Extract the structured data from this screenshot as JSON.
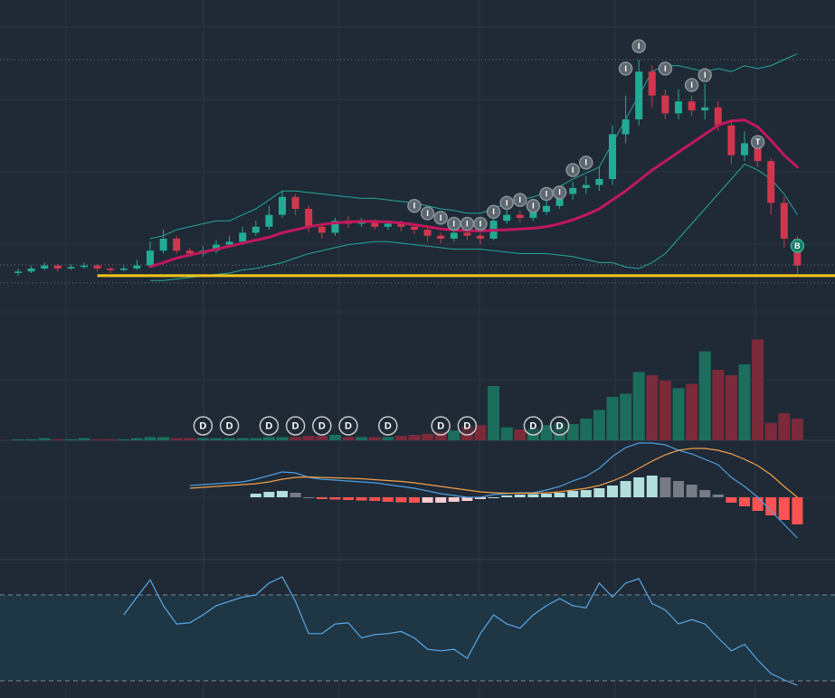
{
  "chart_data": [
    {
      "type": "candlestick",
      "open": [
        8.5,
        9,
        10,
        11,
        10,
        10.5,
        11,
        10,
        9.5,
        10,
        11,
        16,
        20,
        16,
        15,
        16,
        18,
        19,
        22,
        24,
        28,
        34,
        30,
        24,
        22,
        26,
        25,
        25.5,
        24,
        25,
        24,
        23,
        21,
        20,
        22,
        21,
        20,
        26,
        28,
        27,
        29,
        31,
        35,
        37,
        38,
        40,
        55,
        60,
        76,
        68,
        62,
        66,
        63,
        64,
        58,
        48,
        52,
        46,
        32,
        20
      ],
      "high": [
        10,
        11,
        12,
        11.5,
        11.5,
        12,
        11.5,
        10.5,
        11,
        13,
        19,
        23,
        21,
        17,
        17.5,
        19.5,
        21,
        24,
        26,
        31,
        36,
        35,
        31,
        25,
        27,
        27.5,
        27,
        26.5,
        26,
        26,
        25,
        24,
        22,
        23,
        22.5,
        22,
        28,
        30,
        29.5,
        31,
        33,
        37,
        39,
        41,
        44,
        58,
        68,
        80,
        78,
        70,
        70,
        68,
        72,
        66,
        60,
        56,
        54,
        47,
        34,
        21
      ],
      "low": [
        7.5,
        8.5,
        9.5,
        9,
        9.5,
        10,
        9,
        8.5,
        9,
        9.5,
        10.5,
        15,
        15,
        14,
        14,
        15,
        17,
        18,
        21,
        23,
        27,
        28,
        22,
        20,
        21,
        23.5,
        24,
        23,
        23,
        22.5,
        21.5,
        19,
        18.5,
        19,
        19.5,
        18,
        19.5,
        25,
        25.5,
        26,
        28,
        30,
        33,
        35,
        36,
        38,
        52,
        58,
        64,
        60,
        60,
        61,
        60,
        56,
        45,
        46,
        44,
        28,
        17,
        8
      ],
      "close": [
        9,
        10,
        11,
        10,
        10.5,
        11,
        10,
        9.5,
        10,
        11,
        16,
        20,
        16,
        15,
        16,
        18,
        19,
        22,
        24,
        28,
        34,
        30,
        24,
        22,
        26,
        25,
        25.5,
        24,
        25,
        24,
        23,
        21,
        20,
        22,
        21,
        20,
        26,
        28,
        27,
        29,
        31,
        35,
        37,
        38,
        40,
        55,
        60,
        76,
        68,
        62,
        66,
        63,
        64,
        58,
        48,
        52,
        46,
        32,
        20,
        11
      ],
      "up_color": "#22ab94",
      "down_color": "#d2364f",
      "ylim": [
        0,
        100
      ],
      "overlays": [
        {
          "color": "#26a69a",
          "width": 1,
          "values": [
            null,
            null,
            null,
            null,
            null,
            null,
            null,
            null,
            null,
            null,
            20,
            21,
            23,
            24,
            25,
            26,
            26,
            28,
            30,
            33,
            36,
            36,
            35.5,
            35,
            34.5,
            34,
            33.5,
            33.5,
            33,
            32.5,
            32,
            31,
            30,
            29.5,
            28.5,
            28.5,
            30,
            32,
            33,
            34,
            35.5,
            37.5,
            40,
            42,
            44,
            52,
            60,
            68,
            76,
            78,
            78,
            77,
            76,
            77,
            76,
            78,
            77,
            78,
            80,
            82
          ]
        },
        {
          "color": "#26a69a",
          "width": 1,
          "values": [
            null,
            null,
            null,
            null,
            null,
            null,
            null,
            null,
            null,
            null,
            6,
            6,
            6.5,
            7,
            7.5,
            8,
            8.5,
            9.5,
            10,
            11,
            12,
            13.5,
            15,
            16,
            17,
            18,
            18.5,
            19,
            19,
            18.5,
            18,
            17.5,
            17,
            16.5,
            16.5,
            16.5,
            16,
            15.5,
            15,
            15,
            15,
            14.5,
            14,
            13,
            12,
            12,
            10.5,
            10,
            12,
            15,
            20,
            25,
            30,
            35,
            40,
            45,
            43,
            40,
            35,
            28
          ]
        },
        {
          "color": "#c2185b",
          "width": 3,
          "values": [
            null,
            null,
            null,
            null,
            null,
            null,
            null,
            null,
            null,
            null,
            10.6,
            12,
            13.5,
            14.5,
            15.5,
            16.5,
            17.5,
            18.5,
            19.5,
            20.5,
            22,
            23,
            24,
            24.8,
            25.3,
            25.6,
            25.8,
            25.8,
            25.6,
            25.3,
            24.7,
            24,
            23.3,
            22.9,
            22.7,
            22.6,
            22.8,
            23,
            23.2,
            23.5,
            24,
            25,
            26.3,
            28,
            30,
            33,
            36,
            39.5,
            43,
            46,
            49,
            52,
            55,
            58,
            59.5,
            59.8,
            57.5,
            53,
            48,
            44
          ]
        }
      ],
      "hlines": [
        80,
        11.2,
        5.2
      ],
      "support": {
        "value": 7.6,
        "color": "#f5c518",
        "from_index": 6
      },
      "annotations": [
        {
          "text": "I",
          "index": 30,
          "value": 31
        },
        {
          "text": "I",
          "index": 31,
          "value": 28.5
        },
        {
          "text": "I",
          "index": 32,
          "value": 27
        },
        {
          "text": "I",
          "index": 33,
          "value": 25
        },
        {
          "text": "I",
          "index": 34,
          "value": 25
        },
        {
          "text": "I",
          "index": 35,
          "value": 25
        },
        {
          "text": "I",
          "index": 36,
          "value": 29
        },
        {
          "text": "I",
          "index": 37,
          "value": 32
        },
        {
          "text": "I",
          "index": 38,
          "value": 33
        },
        {
          "text": "I",
          "index": 39,
          "value": 31
        },
        {
          "text": "I",
          "index": 40,
          "value": 35
        },
        {
          "text": "I",
          "index": 41,
          "value": 35.5
        },
        {
          "text": "I",
          "index": 42,
          "value": 43
        },
        {
          "text": "I",
          "index": 43,
          "value": 45.5
        },
        {
          "text": "I",
          "index": 46,
          "value": 77
        },
        {
          "text": "I",
          "index": 47,
          "value": 84.5
        },
        {
          "text": "I",
          "index": 49,
          "value": 77
        },
        {
          "text": "I",
          "index": 51,
          "value": 71.5
        },
        {
          "text": "I",
          "index": 52,
          "value": 74.8
        },
        {
          "text": "T",
          "index": 56,
          "value": 52.4
        },
        {
          "text": "B",
          "index": 59,
          "value": 17.6
        }
      ]
    },
    {
      "type": "bar",
      "values": [
        1,
        1,
        2,
        1,
        1,
        2,
        1,
        1,
        1,
        2,
        3,
        3,
        2,
        2,
        2,
        2,
        2,
        2,
        2,
        3,
        3,
        3,
        4,
        4,
        5,
        3,
        3,
        3,
        3,
        4,
        5,
        6,
        8,
        9,
        13,
        14,
        50,
        12,
        10,
        11,
        14,
        16,
        15,
        20,
        28,
        40,
        43,
        63,
        60,
        55,
        48,
        52,
        82,
        65,
        60,
        70,
        93,
        16,
        25,
        20
      ],
      "up_color": "#1b6e5c",
      "down_color": "#7b2a3a",
      "ylim": [
        0,
        120
      ],
      "annotations": [
        {
          "text": "D",
          "index": 14
        },
        {
          "text": "D",
          "index": 16
        },
        {
          "text": "D",
          "index": 19
        },
        {
          "text": "D",
          "index": 21
        },
        {
          "text": "D",
          "index": 23
        },
        {
          "text": "D",
          "index": 25
        },
        {
          "text": "D",
          "index": 28
        },
        {
          "text": "D",
          "index": 32
        },
        {
          "text": "D",
          "index": 34
        },
        {
          "text": "D",
          "index": 39
        },
        {
          "text": "D",
          "index": 41
        }
      ]
    },
    {
      "type": "macd",
      "ylim": [
        -70,
        70
      ],
      "macd": {
        "color": "#4e9fe0",
        "values": [
          null,
          null,
          null,
          null,
          null,
          null,
          null,
          null,
          null,
          null,
          null,
          null,
          null,
          13,
          14,
          15,
          16,
          17,
          20,
          24,
          28,
          27,
          22,
          20,
          19,
          18,
          17,
          16,
          14,
          12,
          10,
          7,
          4,
          2,
          0,
          0,
          3,
          4,
          5,
          5,
          8,
          12,
          18,
          23,
          32,
          45,
          55,
          60,
          60,
          58,
          52,
          48,
          42,
          36,
          22,
          12,
          0,
          -15,
          -30,
          -45
        ]
      },
      "signal": {
        "color": "#f0a04b",
        "values": [
          null,
          null,
          null,
          null,
          null,
          null,
          null,
          null,
          null,
          null,
          null,
          null,
          null,
          10,
          11,
          12,
          13,
          14,
          15,
          17,
          20,
          22,
          22.5,
          22,
          21.5,
          21,
          20.5,
          19.5,
          18.5,
          17.5,
          16,
          14,
          12,
          10,
          8,
          6,
          5,
          4.5,
          4.5,
          4.5,
          5,
          6,
          8,
          10,
          13,
          18,
          24,
          32,
          40,
          47,
          52,
          54,
          54,
          52,
          48,
          42,
          35,
          25,
          12,
          0
        ]
      },
      "histogram": {
        "values": [
          null,
          null,
          null,
          null,
          null,
          null,
          null,
          null,
          null,
          null,
          null,
          null,
          null,
          null,
          null,
          null,
          null,
          null,
          4,
          6,
          7,
          5,
          0,
          -2,
          -2.5,
          -3,
          -3.5,
          -4,
          -5,
          -5.5,
          -6,
          -6,
          -6,
          -5,
          -4,
          -2,
          0,
          2,
          3,
          3.5,
          4,
          5,
          7,
          8,
          10,
          13,
          18,
          22,
          24,
          22,
          18,
          14,
          8,
          3,
          -6,
          -10,
          -15,
          -20,
          -25,
          -30
        ],
        "pos_up": "#b2dfdb",
        "pos_down": "#787b86",
        "neg_down": "#ff5252",
        "neg_up": "#ffcdd2"
      }
    },
    {
      "type": "line",
      "color": "#5aa9e6",
      "ylim": [
        22,
        86
      ],
      "levels": [
        70,
        30
      ],
      "values": [
        null,
        null,
        null,
        null,
        null,
        null,
        null,
        null,
        60.7,
        69,
        77,
        65,
        56.5,
        57,
        60.7,
        65,
        67,
        69,
        70,
        75.5,
        78.4,
        67,
        52,
        52,
        56.5,
        57,
        50,
        51.5,
        52,
        53,
        50,
        44.7,
        44,
        44.7,
        40.5,
        52,
        60.7,
        56.5,
        54.5,
        60.7,
        65,
        68.3,
        65,
        64,
        75.5,
        69,
        75.5,
        77.6,
        66,
        63,
        56.5,
        58.5,
        56.5,
        50,
        44,
        47,
        39.7,
        33.4,
        30.4,
        27.9
      ]
    }
  ]
}
